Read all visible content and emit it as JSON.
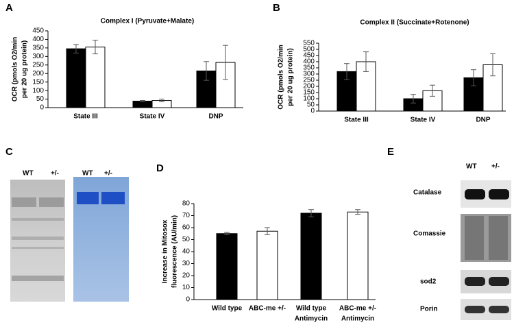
{
  "panel_labels": [
    "A",
    "B",
    "C",
    "D",
    "E"
  ],
  "chart_data": [
    {
      "type": "bar",
      "title": "Complex I (Pyruvate+Malate)",
      "ylabel": [
        "OCR (pmols O2/min",
        "per 20 ug protein)"
      ],
      "categories": [
        [
          "State III"
        ],
        [
          "State IV"
        ],
        [
          "DNP"
        ]
      ],
      "series": [
        {
          "color": "#000000",
          "values": [
            345,
            38,
            215
          ],
          "errors": [
            25,
            4,
            55
          ]
        },
        {
          "color": "#ffffff",
          "values": [
            355,
            42,
            265
          ],
          "errors": [
            40,
            8,
            100
          ]
        }
      ],
      "ylim": [
        0,
        450
      ],
      "yticks": [
        0,
        50,
        100,
        150,
        200,
        250,
        300,
        350,
        400,
        450
      ]
    },
    {
      "type": "bar",
      "title": "Complex II (Succinate+Rotenone)",
      "ylabel": [
        "OCR (pmols O2/min",
        "per 20 ug protein)"
      ],
      "categories": [
        [
          "State III"
        ],
        [
          "State IV"
        ],
        [
          "DNP"
        ]
      ],
      "series": [
        {
          "color": "#000000",
          "values": [
            320,
            100,
            270
          ],
          "errors": [
            65,
            35,
            65
          ]
        },
        {
          "color": "#ffffff",
          "values": [
            400,
            165,
            375
          ],
          "errors": [
            80,
            45,
            90
          ]
        }
      ],
      "ylim": [
        0,
        550
      ],
      "yticks": [
        0,
        50,
        100,
        150,
        200,
        250,
        300,
        350,
        400,
        450,
        500,
        550
      ]
    },
    {
      "type": "bar",
      "ylabel": [
        "Increase in Mitosox",
        "fluorescence (AU/min)"
      ],
      "categories": [
        [
          "Wild type"
        ],
        [
          "ABC-me +/-"
        ],
        [
          "Wild type",
          "Antimycin"
        ],
        [
          "ABC-me +/-",
          "Antimycin"
        ]
      ],
      "values": [
        55,
        57,
        72,
        73
      ],
      "errors": [
        1,
        3,
        3,
        2
      ],
      "colors": [
        "#000000",
        "#ffffff",
        "#000000",
        "#ffffff"
      ],
      "ylim": [
        0,
        80
      ],
      "yticks": [
        0,
        10,
        20,
        30,
        40,
        50,
        60,
        70,
        80
      ]
    }
  ],
  "gel_c": {
    "lanes": [
      "WT",
      "+/-",
      "WT",
      "+/-"
    ]
  },
  "blot_e": {
    "lanes": [
      "WT",
      "+/-"
    ],
    "rows": [
      "Catalase",
      "Comassie",
      "sod2",
      "Porin"
    ]
  }
}
